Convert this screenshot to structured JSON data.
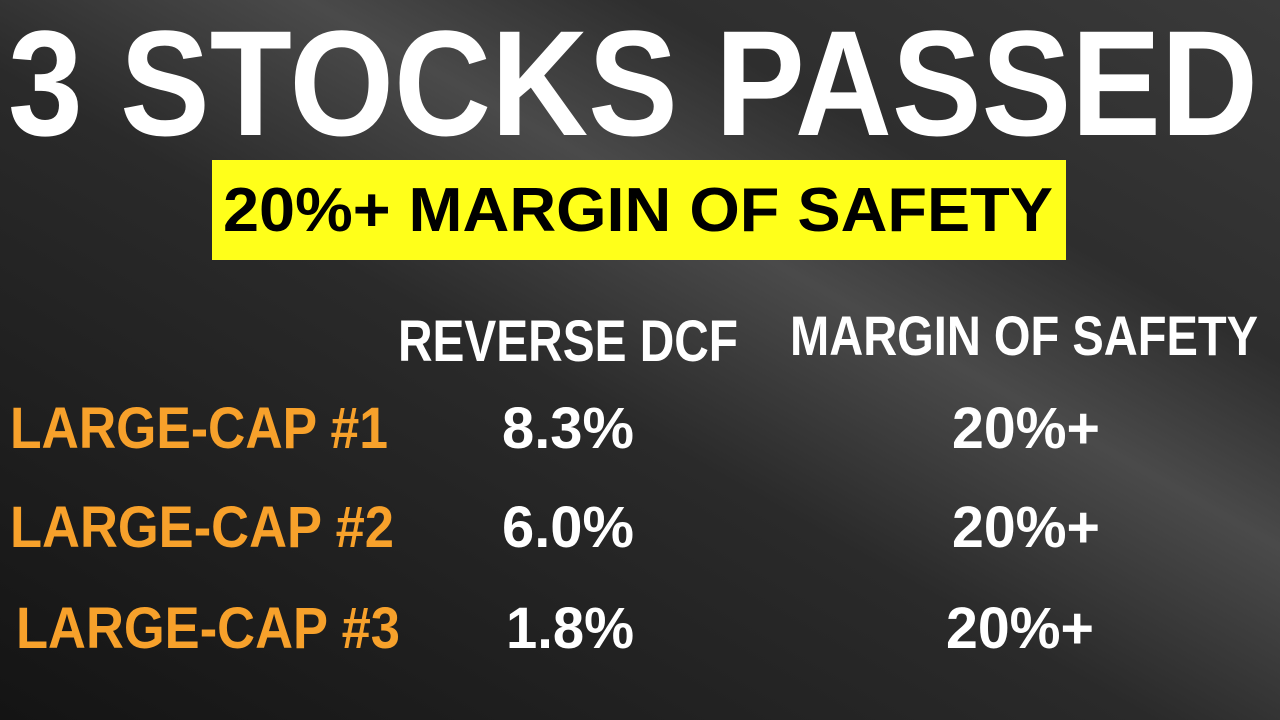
{
  "header": {
    "title": "3 STOCKS PASSED",
    "subtitle": "20%+ MARGIN OF SAFETY"
  },
  "table": {
    "columns": [
      "REVERSE DCF",
      "MARGIN OF SAFETY"
    ],
    "rows": [
      [
        "LARGE-CAP #1",
        "8.3%",
        "20%+"
      ],
      [
        "LARGE-CAP #2",
        "6.0%",
        "20%+"
      ],
      [
        "LARGE-CAP #3",
        "1.8%",
        "20%+"
      ]
    ]
  }
}
